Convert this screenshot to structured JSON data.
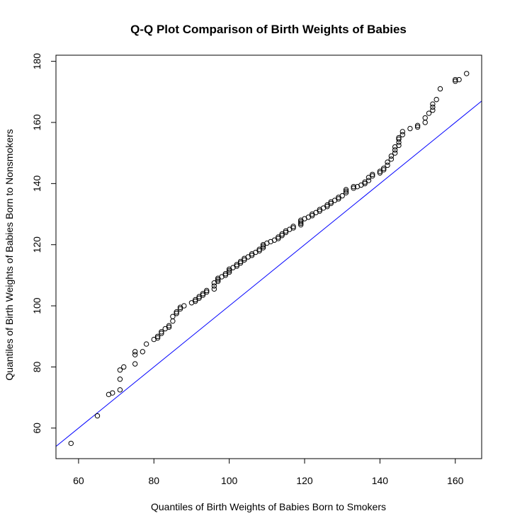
{
  "chart_data": {
    "type": "scatter",
    "title": "Q-Q Plot Comparison of Birth Weights of Babies",
    "xlabel": "Quantiles of Birth Weights of Babies Born to Smokers",
    "ylabel": "Quantiles of Birth Weights of Babies Born to Nonsmokers",
    "xlim": [
      54,
      167
    ],
    "ylim": [
      50,
      182
    ],
    "xticks": [
      60,
      80,
      100,
      120,
      140,
      160
    ],
    "yticks": [
      60,
      80,
      100,
      120,
      140,
      160,
      180
    ],
    "grid": false,
    "marker": "open-circle",
    "point_color": "#000000",
    "line_color": "#0000ff",
    "reference_line": {
      "intercept": 0,
      "slope": 1
    },
    "points": [
      [
        58,
        55
      ],
      [
        65,
        64
      ],
      [
        68,
        71
      ],
      [
        69,
        71.5
      ],
      [
        71,
        72.5
      ],
      [
        71,
        76
      ],
      [
        71,
        79
      ],
      [
        72,
        80
      ],
      [
        75,
        81
      ],
      [
        75,
        84
      ],
      [
        75,
        85
      ],
      [
        77,
        85
      ],
      [
        78,
        87.5
      ],
      [
        80,
        89
      ],
      [
        81,
        89.5
      ],
      [
        81,
        90
      ],
      [
        82,
        91
      ],
      [
        82,
        91.5
      ],
      [
        83,
        92.5
      ],
      [
        84,
        93
      ],
      [
        84,
        93.5
      ],
      [
        85,
        95
      ],
      [
        85,
        96.5
      ],
      [
        86,
        97.5
      ],
      [
        86,
        98
      ],
      [
        87,
        99
      ],
      [
        87,
        99.5
      ],
      [
        88,
        100
      ],
      [
        90,
        101
      ],
      [
        91,
        101.5
      ],
      [
        91,
        102
      ],
      [
        92,
        102.5
      ],
      [
        92,
        103
      ],
      [
        93,
        103.5
      ],
      [
        93,
        104
      ],
      [
        94,
        104.5
      ],
      [
        94,
        105
      ],
      [
        96,
        105.5
      ],
      [
        96,
        106.5
      ],
      [
        96,
        107.5
      ],
      [
        97,
        108
      ],
      [
        97,
        108.5
      ],
      [
        97,
        109
      ],
      [
        98,
        109.5
      ],
      [
        99,
        110
      ],
      [
        99,
        110.5
      ],
      [
        100,
        111
      ],
      [
        100,
        111.5
      ],
      [
        100,
        112
      ],
      [
        101,
        112.5
      ],
      [
        102,
        113
      ],
      [
        102,
        113.5
      ],
      [
        103,
        114
      ],
      [
        103,
        114.5
      ],
      [
        104,
        115
      ],
      [
        104,
        115.5
      ],
      [
        105,
        116
      ],
      [
        106,
        116.5
      ],
      [
        106,
        117
      ],
      [
        107,
        117.5
      ],
      [
        108,
        118
      ],
      [
        108,
        118.5
      ],
      [
        109,
        119
      ],
      [
        109,
        119.5
      ],
      [
        109,
        120
      ],
      [
        110,
        120.5
      ],
      [
        111,
        121
      ],
      [
        112,
        121.5
      ],
      [
        113,
        122
      ],
      [
        113,
        122.5
      ],
      [
        114,
        123
      ],
      [
        114,
        123.5
      ],
      [
        115,
        124
      ],
      [
        115,
        124.5
      ],
      [
        116,
        125
      ],
      [
        117,
        125.5
      ],
      [
        117,
        126
      ],
      [
        119,
        126.5
      ],
      [
        119,
        127
      ],
      [
        119,
        127.5
      ],
      [
        119,
        128
      ],
      [
        120,
        128.5
      ],
      [
        121,
        129
      ],
      [
        122,
        129.5
      ],
      [
        122,
        130
      ],
      [
        123,
        130.5
      ],
      [
        124,
        131
      ],
      [
        124,
        131.5
      ],
      [
        125,
        132
      ],
      [
        126,
        132.5
      ],
      [
        126,
        133
      ],
      [
        127,
        133.5
      ],
      [
        127,
        134
      ],
      [
        128,
        134.5
      ],
      [
        129,
        135
      ],
      [
        129,
        135.5
      ],
      [
        130,
        136
      ],
      [
        131,
        137
      ],
      [
        131,
        137.5
      ],
      [
        131,
        138
      ],
      [
        133,
        138.5
      ],
      [
        133,
        139
      ],
      [
        134,
        139
      ],
      [
        135,
        139.5
      ],
      [
        136,
        140
      ],
      [
        136,
        140.5
      ],
      [
        137,
        141
      ],
      [
        137,
        142
      ],
      [
        138,
        142.5
      ],
      [
        138,
        143
      ],
      [
        140,
        143.5
      ],
      [
        140,
        144
      ],
      [
        141,
        144.5
      ],
      [
        141,
        145
      ],
      [
        142,
        146
      ],
      [
        142,
        147
      ],
      [
        143,
        148
      ],
      [
        143,
        149
      ],
      [
        144,
        150
      ],
      [
        144,
        151
      ],
      [
        144,
        152
      ],
      [
        145,
        152.5
      ],
      [
        145,
        153.5
      ],
      [
        145,
        154.5
      ],
      [
        145,
        155
      ],
      [
        146,
        156
      ],
      [
        146,
        157
      ],
      [
        148,
        158
      ],
      [
        150,
        158.5
      ],
      [
        150,
        159
      ],
      [
        152,
        160
      ],
      [
        152,
        161.5
      ],
      [
        153,
        163
      ],
      [
        154,
        164
      ],
      [
        154,
        165
      ],
      [
        154,
        166
      ],
      [
        155,
        167.5
      ],
      [
        156,
        171
      ],
      [
        160,
        173.5
      ],
      [
        160,
        174
      ],
      [
        161,
        174
      ],
      [
        163,
        176
      ]
    ]
  }
}
